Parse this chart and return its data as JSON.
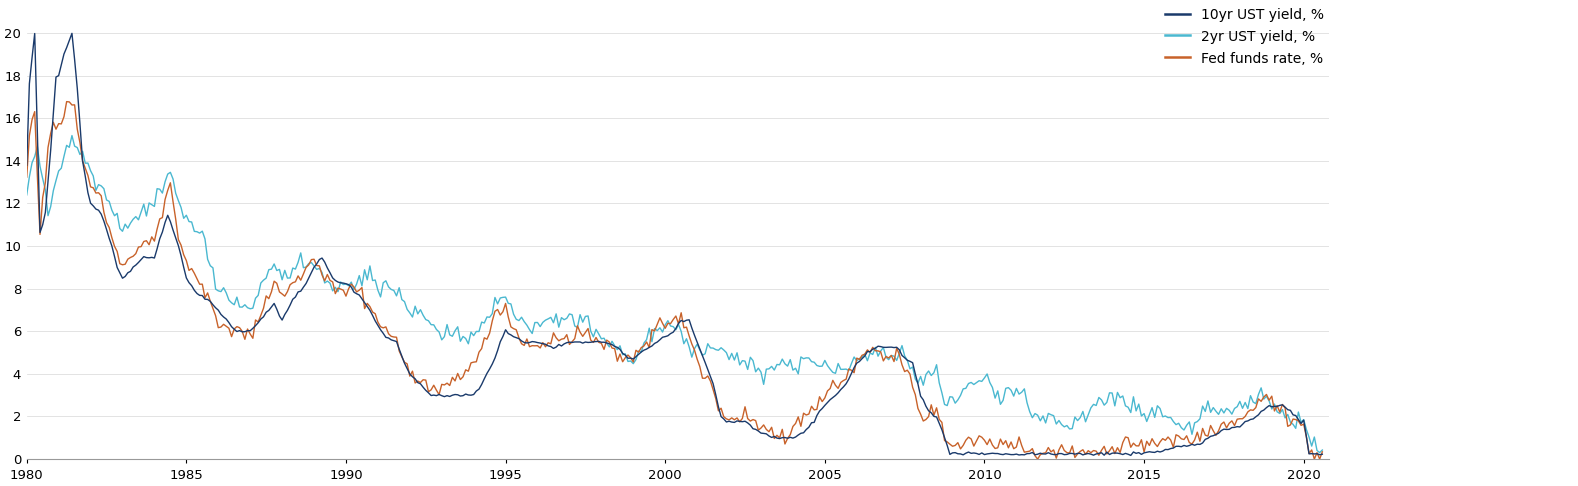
{
  "fed_funds_color": "#1a3a6b",
  "ten_yr_color": "#4ab8d0",
  "two_yr_color": "#c8622a",
  "legend_labels": [
    "Fed funds rate, %",
    "10yr UST yield, %",
    "2yr UST yield, %"
  ],
  "ylim": [
    0,
    21
  ],
  "yticks": [
    0,
    2,
    4,
    6,
    8,
    10,
    12,
    14,
    16,
    18,
    20
  ],
  "xlim_start": 1980.0,
  "xlim_end": 2020.8,
  "xtick_years": [
    1980,
    1985,
    1990,
    1995,
    2000,
    2005,
    2010,
    2015,
    2020
  ],
  "line_width": 1.0,
  "bg_color": "#ffffff",
  "figsize": [
    15.78,
    4.86
  ],
  "dpi": 100
}
